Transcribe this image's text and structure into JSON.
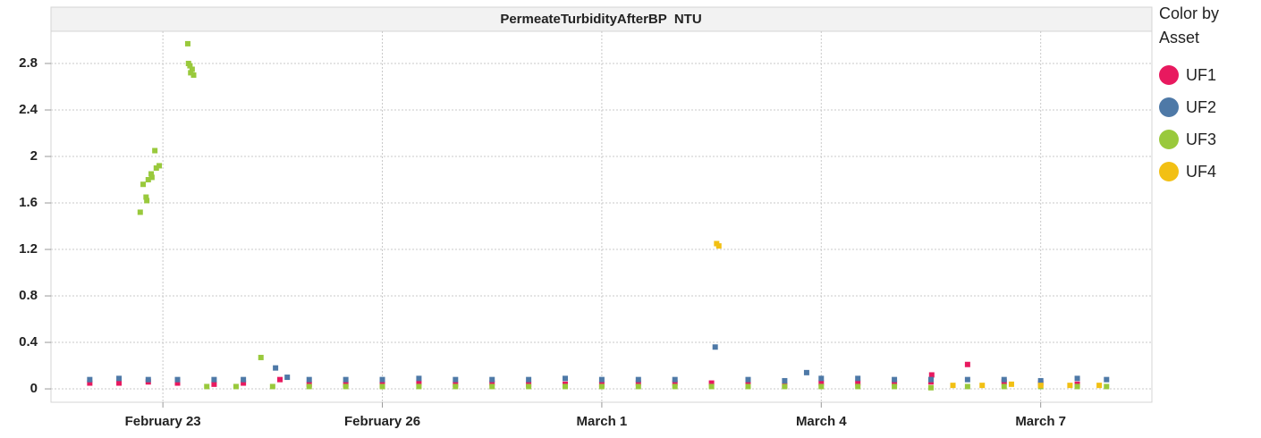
{
  "chart_data": {
    "type": "scatter",
    "title": "PermeateTurbidityAfterBP  NTU",
    "legend_title": "Color by Asset",
    "xlim": [
      -1.53,
      13.52
    ],
    "xticks": [
      {
        "value": 0,
        "label": "February 23"
      },
      {
        "value": 3,
        "label": "February 26"
      },
      {
        "value": 6,
        "label": "March 1"
      },
      {
        "value": 9,
        "label": "March 4"
      },
      {
        "value": 12,
        "label": "March 7"
      }
    ],
    "ylim": [
      -0.115,
      3.077
    ],
    "yticks": [
      0,
      0.4,
      0.8,
      1.2,
      1.6,
      2,
      2.4,
      2.8
    ],
    "grid": true,
    "series": [
      {
        "name": "UF1",
        "color": "#e8195f",
        "x": [
          -1.0,
          -0.6,
          -0.2,
          0.2,
          0.7,
          1.1,
          1.6,
          2.0,
          2.5,
          3.0,
          3.5,
          4.0,
          4.5,
          5.0,
          5.5,
          6.0,
          6.5,
          7.0,
          7.5,
          8.0,
          8.5,
          9.0,
          9.5,
          10.0,
          10.5,
          10.51,
          11.0,
          11.5,
          12.0,
          12.5
        ],
        "y": [
          0.05,
          0.05,
          0.06,
          0.05,
          0.04,
          0.05,
          0.08,
          0.04,
          0.04,
          0.04,
          0.05,
          0.04,
          0.05,
          0.04,
          0.04,
          0.04,
          0.05,
          0.05,
          0.05,
          0.04,
          0.03,
          0.05,
          0.05,
          0.05,
          0.06,
          0.12,
          0.21,
          0.06,
          0.05,
          0.04
        ]
      },
      {
        "name": "UF2",
        "color": "#4e79a7",
        "x": [
          -1.0,
          -0.6,
          -0.2,
          0.2,
          0.7,
          1.1,
          1.54,
          1.7,
          2.0,
          2.5,
          3.0,
          3.5,
          4.0,
          4.5,
          5.0,
          5.5,
          6.0,
          6.5,
          7.0,
          7.55,
          8.0,
          8.5,
          8.8,
          9.0,
          9.5,
          10.0,
          10.5,
          11.0,
          11.5,
          12.0,
          12.5,
          12.9
        ],
        "y": [
          0.08,
          0.09,
          0.08,
          0.08,
          0.08,
          0.08,
          0.18,
          0.1,
          0.08,
          0.08,
          0.08,
          0.09,
          0.08,
          0.08,
          0.08,
          0.09,
          0.08,
          0.08,
          0.08,
          0.36,
          0.08,
          0.07,
          0.14,
          0.09,
          0.09,
          0.08,
          0.08,
          0.08,
          0.08,
          0.07,
          0.09,
          0.08
        ]
      },
      {
        "name": "UF3",
        "color": "#99c93c",
        "x": [
          -0.31,
          -0.27,
          -0.23,
          -0.22,
          -0.2,
          -0.16,
          -0.15,
          -0.11,
          -0.09,
          -0.05,
          0.34,
          0.35,
          0.37,
          0.38,
          0.4,
          0.42,
          1.34,
          0.6,
          1.0,
          1.5,
          2.0,
          2.5,
          3.0,
          3.5,
          4.0,
          4.5,
          5.0,
          5.5,
          6.0,
          6.5,
          7.0,
          7.5,
          8.0,
          8.5,
          9.0,
          9.5,
          10.0,
          10.5,
          11.0,
          11.5,
          12.0,
          12.5,
          12.9
        ],
        "y": [
          1.52,
          1.76,
          1.65,
          1.62,
          1.8,
          1.85,
          1.82,
          2.05,
          1.9,
          1.92,
          2.97,
          2.8,
          2.78,
          2.72,
          2.75,
          2.7,
          0.27,
          0.02,
          0.02,
          0.02,
          0.02,
          0.02,
          0.02,
          0.02,
          0.02,
          0.02,
          0.02,
          0.02,
          0.02,
          0.02,
          0.02,
          0.02,
          0.02,
          0.02,
          0.02,
          0.02,
          0.02,
          0.01,
          0.02,
          0.02,
          0.02,
          0.02,
          0.02
        ]
      },
      {
        "name": "UF4",
        "color": "#f2c014",
        "x": [
          7.57,
          7.6,
          10.8,
          11.2,
          11.6,
          12.0,
          12.4,
          12.8
        ],
        "y": [
          1.25,
          1.23,
          0.03,
          0.03,
          0.04,
          0.03,
          0.03,
          0.03
        ]
      }
    ]
  }
}
